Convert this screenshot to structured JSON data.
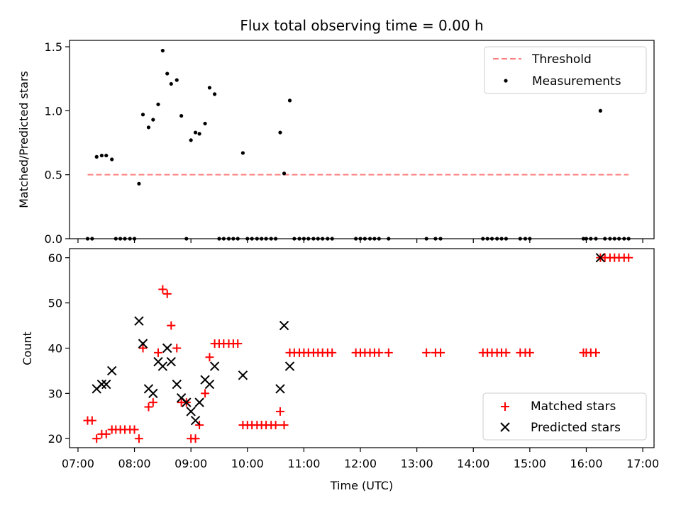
{
  "figure": {
    "title": "Flux total observing time = 0.00 h",
    "xlabel": "Time (UTC)",
    "x_tick_labels": [
      "07:00",
      "08:00",
      "09:00",
      "10:00",
      "11:00",
      "12:00",
      "13:00",
      "14:00",
      "15:00",
      "16:00",
      "17:00"
    ],
    "x_ticks": [
      7,
      8,
      9,
      10,
      11,
      12,
      13,
      14,
      15,
      16,
      17
    ]
  },
  "chart_data": [
    {
      "type": "scatter",
      "ylabel": "Matched/Predicted stars",
      "xlim": [
        6.85,
        17.2
      ],
      "ylim": [
        0,
        1.55
      ],
      "yticks": [
        0.0,
        0.5,
        1.0,
        1.5
      ],
      "ytick_labels": [
        "0.0",
        "0.5",
        "1.0",
        "1.5"
      ],
      "legend": {
        "position": "top-right",
        "entries": [
          "Threshold",
          "Measurements"
        ]
      },
      "threshold": {
        "name": "Threshold",
        "value": 0.5,
        "x_range": [
          7.17,
          16.75
        ],
        "color": "#ff7f7f"
      },
      "series": [
        {
          "name": "Measurements",
          "color": "#000000",
          "points": [
            [
              7.17,
              0
            ],
            [
              7.25,
              0
            ],
            [
              7.33,
              0.64
            ],
            [
              7.42,
              0.65
            ],
            [
              7.5,
              0.65
            ],
            [
              7.6,
              0.62
            ],
            [
              7.67,
              0
            ],
            [
              7.75,
              0
            ],
            [
              7.83,
              0
            ],
            [
              7.92,
              0
            ],
            [
              8.0,
              0
            ],
            [
              8.08,
              0.43
            ],
            [
              8.15,
              0.97
            ],
            [
              8.25,
              0.87
            ],
            [
              8.33,
              0.93
            ],
            [
              8.42,
              1.05
            ],
            [
              8.5,
              1.47
            ],
            [
              8.58,
              1.29
            ],
            [
              8.65,
              1.21
            ],
            [
              8.75,
              1.24
            ],
            [
              8.83,
              0.96
            ],
            [
              8.92,
              0
            ],
            [
              9.0,
              0.77
            ],
            [
              9.08,
              0.83
            ],
            [
              9.15,
              0.82
            ],
            [
              9.25,
              0.9
            ],
            [
              9.33,
              1.18
            ],
            [
              9.42,
              1.13
            ],
            [
              9.5,
              0
            ],
            [
              9.58,
              0
            ],
            [
              9.67,
              0
            ],
            [
              9.75,
              0
            ],
            [
              9.83,
              0
            ],
            [
              9.92,
              0.67
            ],
            [
              10.0,
              0
            ],
            [
              10.08,
              0
            ],
            [
              10.17,
              0
            ],
            [
              10.25,
              0
            ],
            [
              10.33,
              0
            ],
            [
              10.42,
              0
            ],
            [
              10.5,
              0
            ],
            [
              10.58,
              0.83
            ],
            [
              10.65,
              0.51
            ],
            [
              10.75,
              1.08
            ],
            [
              10.83,
              0
            ],
            [
              10.92,
              0
            ],
            [
              11.0,
              0
            ],
            [
              11.08,
              0
            ],
            [
              11.17,
              0
            ],
            [
              11.25,
              0
            ],
            [
              11.33,
              0
            ],
            [
              11.42,
              0
            ],
            [
              11.5,
              0
            ],
            [
              11.92,
              0
            ],
            [
              12.0,
              0
            ],
            [
              12.08,
              0
            ],
            [
              12.17,
              0
            ],
            [
              12.25,
              0
            ],
            [
              12.33,
              0
            ],
            [
              12.5,
              0
            ],
            [
              13.17,
              0
            ],
            [
              13.33,
              0
            ],
            [
              13.42,
              0
            ],
            [
              14.17,
              0
            ],
            [
              14.25,
              0
            ],
            [
              14.33,
              0
            ],
            [
              14.42,
              0
            ],
            [
              14.5,
              0
            ],
            [
              14.58,
              0
            ],
            [
              14.83,
              0
            ],
            [
              14.92,
              0
            ],
            [
              15.0,
              0
            ],
            [
              15.95,
              0
            ],
            [
              16.0,
              0
            ],
            [
              16.08,
              0
            ],
            [
              16.17,
              0
            ],
            [
              16.25,
              1.0
            ],
            [
              16.33,
              0
            ],
            [
              16.42,
              0
            ],
            [
              16.5,
              0
            ],
            [
              16.58,
              0
            ],
            [
              16.67,
              0
            ],
            [
              16.75,
              0
            ]
          ]
        }
      ]
    },
    {
      "type": "scatter",
      "ylabel": "Count",
      "xlim": [
        6.85,
        17.2
      ],
      "ylim": [
        18,
        62
      ],
      "yticks": [
        20,
        30,
        40,
        50,
        60
      ],
      "ytick_labels": [
        "20",
        "30",
        "40",
        "50",
        "60"
      ],
      "legend": {
        "position": "bottom-right",
        "entries": [
          "Matched stars",
          "Predicted stars"
        ]
      },
      "series": [
        {
          "name": "Matched stars",
          "marker": "plus",
          "color": "#ff0000",
          "points": [
            [
              7.17,
              24
            ],
            [
              7.25,
              24
            ],
            [
              7.33,
              20
            ],
            [
              7.42,
              21
            ],
            [
              7.5,
              21
            ],
            [
              7.6,
              22
            ],
            [
              7.67,
              22
            ],
            [
              7.75,
              22
            ],
            [
              7.83,
              22
            ],
            [
              7.92,
              22
            ],
            [
              8.0,
              22
            ],
            [
              8.08,
              20
            ],
            [
              8.15,
              40
            ],
            [
              8.25,
              27
            ],
            [
              8.33,
              28
            ],
            [
              8.42,
              39
            ],
            [
              8.5,
              53
            ],
            [
              8.58,
              52
            ],
            [
              8.65,
              45
            ],
            [
              8.75,
              40
            ],
            [
              8.83,
              28
            ],
            [
              8.92,
              28
            ],
            [
              9.0,
              20
            ],
            [
              9.08,
              20
            ],
            [
              9.15,
              23
            ],
            [
              9.25,
              30
            ],
            [
              9.33,
              38
            ],
            [
              9.42,
              41
            ],
            [
              9.5,
              41
            ],
            [
              9.58,
              41
            ],
            [
              9.67,
              41
            ],
            [
              9.75,
              41
            ],
            [
              9.83,
              41
            ],
            [
              9.92,
              23
            ],
            [
              10.0,
              23
            ],
            [
              10.08,
              23
            ],
            [
              10.17,
              23
            ],
            [
              10.25,
              23
            ],
            [
              10.33,
              23
            ],
            [
              10.42,
              23
            ],
            [
              10.5,
              23
            ],
            [
              10.58,
              26
            ],
            [
              10.65,
              23
            ],
            [
              10.75,
              39
            ],
            [
              10.83,
              39
            ],
            [
              10.92,
              39
            ],
            [
              11.0,
              39
            ],
            [
              11.08,
              39
            ],
            [
              11.17,
              39
            ],
            [
              11.25,
              39
            ],
            [
              11.33,
              39
            ],
            [
              11.42,
              39
            ],
            [
              11.5,
              39
            ],
            [
              11.92,
              39
            ],
            [
              12.0,
              39
            ],
            [
              12.08,
              39
            ],
            [
              12.17,
              39
            ],
            [
              12.25,
              39
            ],
            [
              12.33,
              39
            ],
            [
              12.5,
              39
            ],
            [
              13.17,
              39
            ],
            [
              13.33,
              39
            ],
            [
              13.42,
              39
            ],
            [
              14.17,
              39
            ],
            [
              14.25,
              39
            ],
            [
              14.33,
              39
            ],
            [
              14.42,
              39
            ],
            [
              14.5,
              39
            ],
            [
              14.58,
              39
            ],
            [
              14.83,
              39
            ],
            [
              14.92,
              39
            ],
            [
              15.0,
              39
            ],
            [
              15.95,
              39
            ],
            [
              16.0,
              39
            ],
            [
              16.08,
              39
            ],
            [
              16.17,
              39
            ],
            [
              16.25,
              60
            ],
            [
              16.33,
              60
            ],
            [
              16.42,
              60
            ],
            [
              16.5,
              60
            ],
            [
              16.58,
              60
            ],
            [
              16.67,
              60
            ],
            [
              16.75,
              60
            ]
          ]
        },
        {
          "name": "Predicted stars",
          "marker": "x",
          "color": "#000000",
          "points": [
            [
              7.33,
              31
            ],
            [
              7.42,
              32
            ],
            [
              7.5,
              32
            ],
            [
              7.6,
              35
            ],
            [
              8.08,
              46
            ],
            [
              8.15,
              41
            ],
            [
              8.25,
              31
            ],
            [
              8.33,
              30
            ],
            [
              8.42,
              37
            ],
            [
              8.5,
              36
            ],
            [
              8.58,
              40
            ],
            [
              8.65,
              37
            ],
            [
              8.75,
              32
            ],
            [
              8.83,
              29
            ],
            [
              8.92,
              28
            ],
            [
              9.0,
              26
            ],
            [
              9.08,
              24
            ],
            [
              9.15,
              28
            ],
            [
              9.25,
              33
            ],
            [
              9.33,
              32
            ],
            [
              9.42,
              36
            ],
            [
              9.92,
              34
            ],
            [
              10.58,
              31
            ],
            [
              10.65,
              45
            ],
            [
              10.75,
              36
            ],
            [
              16.25,
              60
            ]
          ]
        }
      ]
    }
  ]
}
